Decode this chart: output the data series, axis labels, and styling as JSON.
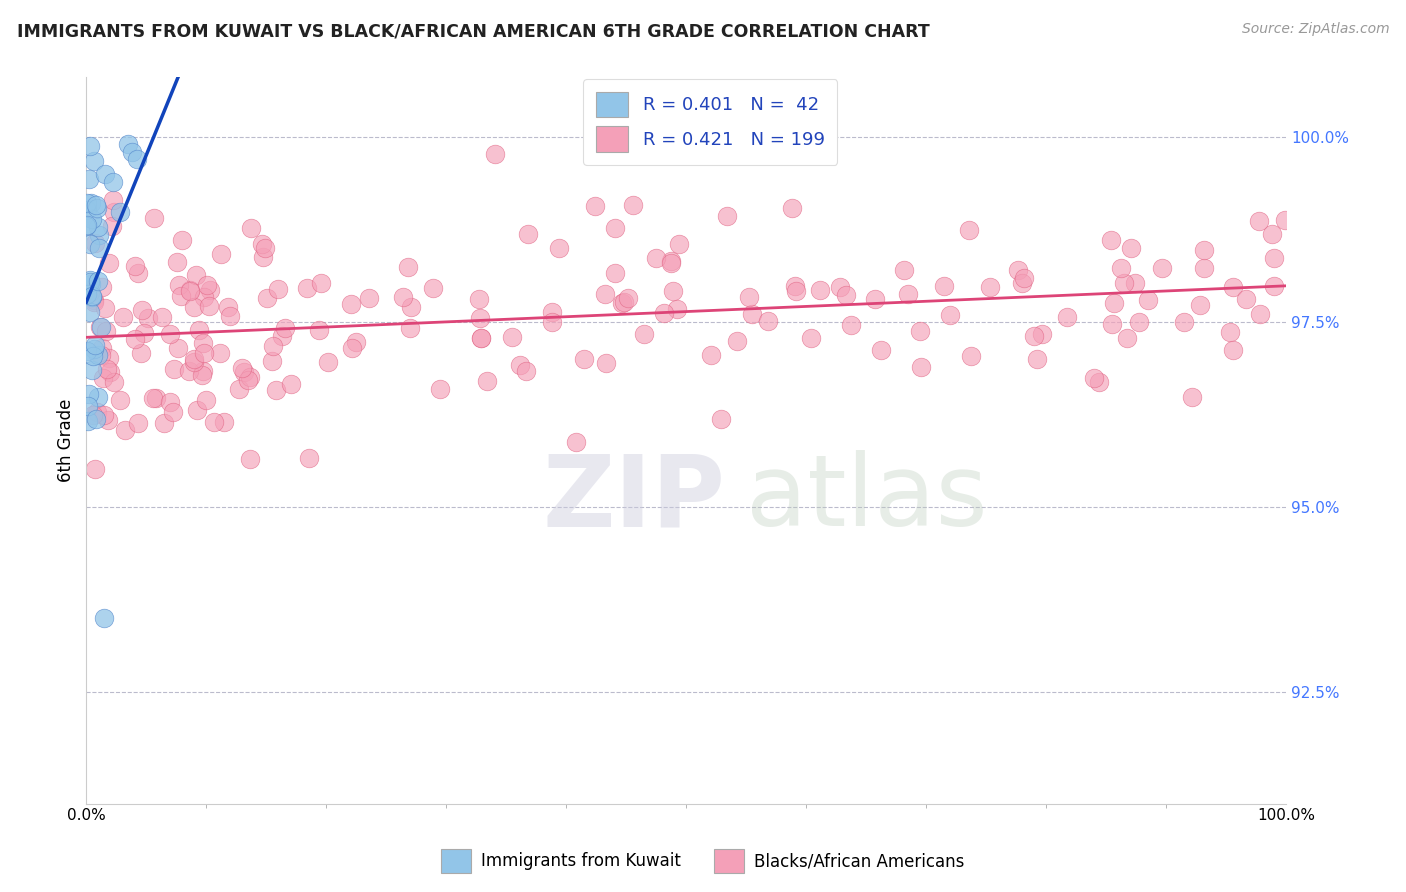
{
  "title": "IMMIGRANTS FROM KUWAIT VS BLACK/AFRICAN AMERICAN 6TH GRADE CORRELATION CHART",
  "source": "Source: ZipAtlas.com",
  "ylabel": "6th Grade",
  "right_yticks": [
    92.5,
    95.0,
    97.5,
    100.0
  ],
  "right_ytick_labels": [
    "92.5%",
    "95.0%",
    "97.5%",
    "100.0%"
  ],
  "xmin": 0.0,
  "xmax": 100.0,
  "ymin": 91.0,
  "ymax": 100.8,
  "blue_r": 0.401,
  "blue_n": 42,
  "pink_r": 0.421,
  "pink_n": 199,
  "blue_color": "#92C5E8",
  "pink_color": "#F4A0B8",
  "blue_edge_color": "#5588CC",
  "pink_edge_color": "#E06080",
  "blue_line_color": "#1144BB",
  "pink_line_color": "#DD4477",
  "legend_label_blue": "Immigrants from Kuwait",
  "legend_label_pink": "Blacks/African Americans",
  "watermark_zip": "ZIP",
  "watermark_atlas": "atlas"
}
